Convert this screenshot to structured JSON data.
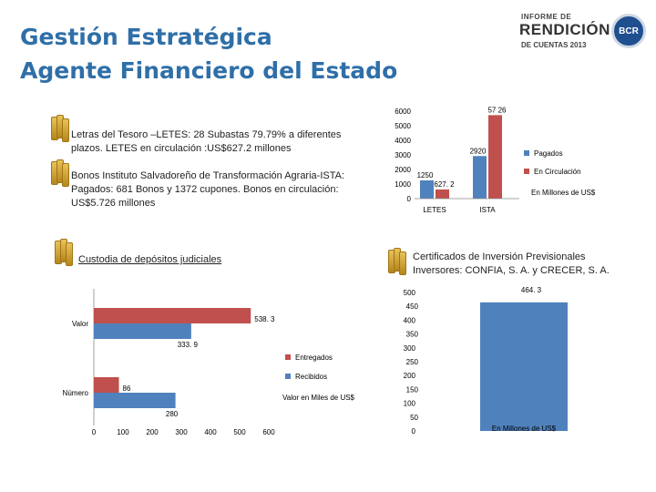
{
  "header": {
    "title_line1": "Gestión Estratégica",
    "title_line2": "Agente Financiero del Estado"
  },
  "logo": {
    "line1": "INFORME DE",
    "line2": "RENDICIÓN",
    "line3": "DE CUENTAS 2013",
    "seal": "BCR"
  },
  "bullets": {
    "letras": "Letras del Tesoro –LETES: 28 Subastas 79.79% a diferentes plazos. LETES en circulación :US$627.2 millones",
    "ista": "Bonos Instituto Salvadoreño de Transformación Agraria-ISTA: Pagados: 681 Bonos y 1372 cupones. Bonos en circulación: US$5.726 millones",
    "custodia": "Custodia de depósitos judiciales",
    "certificados": "Certificados de Inversión Previsionales Inversores: CONFIA, S. A. y CRECER, S. A."
  },
  "chart_data": [
    {
      "type": "bar",
      "categories": [
        "LETES",
        "ISTA"
      ],
      "series": [
        {
          "name": "Pagados",
          "values": [
            1250,
            2920
          ]
        },
        {
          "name": "En Circulación",
          "values": [
            627.2,
            5726
          ]
        }
      ],
      "data_labels": [
        "1250",
        "2920",
        "627. 2",
        "57 26"
      ],
      "ylim": [
        0,
        6000
      ],
      "yticks": [
        "0",
        "1000",
        "2000",
        "3000",
        "4000",
        "5000",
        "6000"
      ],
      "annotation": "En Millones de US$",
      "colors": {
        "Pagados": "#4f81bd",
        "En Circulación": "#c0504d"
      }
    },
    {
      "type": "bar",
      "orientation": "horizontal",
      "categories": [
        "Número",
        "Valor"
      ],
      "series": [
        {
          "name": "Entregados",
          "values": [
            86,
            538.3
          ]
        },
        {
          "name": "Recibidos",
          "values": [
            280,
            333.9
          ]
        }
      ],
      "data_labels": [
        "86",
        "280",
        "538. 3",
        "333. 9"
      ],
      "xlim": [
        0,
        600
      ],
      "xticks": [
        "0",
        "100",
        "200",
        "300",
        "400",
        "500",
        "600"
      ],
      "annotation": "Valor en Miles de US$",
      "colors": {
        "Entregados": "#c0504d",
        "Recibidos": "#4f81bd"
      }
    },
    {
      "type": "bar",
      "categories": [
        ""
      ],
      "values": [
        464.3
      ],
      "data_labels": [
        "464. 3"
      ],
      "ylim": [
        0,
        500
      ],
      "yticks": [
        "0",
        "50",
        "100",
        "150",
        "200",
        "250",
        "300",
        "350",
        "400",
        "450",
        "500"
      ],
      "annotation": "En Millones de US$",
      "colors": {
        "bar": "#4f81bd"
      }
    }
  ]
}
